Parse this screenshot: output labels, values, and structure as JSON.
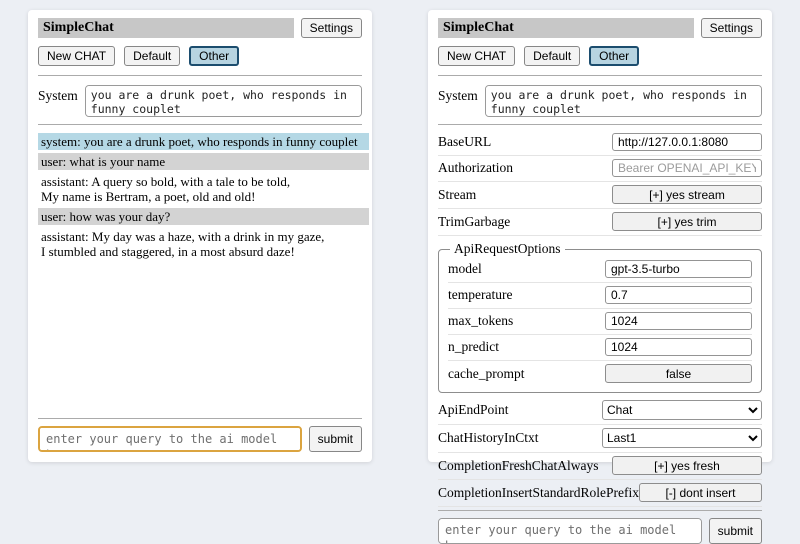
{
  "app": {
    "title": "SimpleChat",
    "settings_button": "Settings",
    "system_label": "System",
    "system_prompt": "you are a drunk poet, who responds in funny couplet",
    "query_placeholder": "enter your query to the ai model here",
    "submit_button": "submit"
  },
  "sessions": {
    "buttons": [
      "New CHAT",
      "Default",
      "Other"
    ],
    "selected": "Other"
  },
  "chat": {
    "messages": [
      {
        "role": "system",
        "text": "system: you are a drunk poet, who responds in funny couplet"
      },
      {
        "role": "user",
        "text": "user: what is your name"
      },
      {
        "role": "assistant",
        "text": "assistant: A query so bold, with a tale to be told,\nMy name is Bertram, a poet, old and old!"
      },
      {
        "role": "user",
        "text": "user: how was your day?"
      },
      {
        "role": "assistant",
        "text": "assistant: My day was a haze, with a drink in my gaze,\nI stumbled and staggered, in a most absurd daze!"
      }
    ]
  },
  "settings": {
    "fields_top": [
      {
        "label": "BaseURL",
        "type": "input",
        "value": "http://127.0.0.1:8080",
        "placeholder": ""
      },
      {
        "label": "Authorization",
        "type": "input",
        "value": "",
        "placeholder": "Bearer OPENAI_API_KEY"
      },
      {
        "label": "Stream",
        "type": "button",
        "value": "[+] yes stream"
      },
      {
        "label": "TrimGarbage",
        "type": "button",
        "value": "[+] yes trim"
      }
    ],
    "api_request_options": {
      "legend": "ApiRequestOptions",
      "fields": [
        {
          "label": "model",
          "type": "input",
          "value": "gpt-3.5-turbo",
          "placeholder": ""
        },
        {
          "label": "temperature",
          "type": "input",
          "value": "0.7",
          "placeholder": ""
        },
        {
          "label": "max_tokens",
          "type": "input",
          "value": "1024",
          "placeholder": ""
        },
        {
          "label": "n_predict",
          "type": "input",
          "value": "1024",
          "placeholder": ""
        },
        {
          "label": "cache_prompt",
          "type": "button",
          "value": "false"
        }
      ]
    },
    "fields_bottom": [
      {
        "label": "ApiEndPoint",
        "type": "select",
        "value": "Chat"
      },
      {
        "label": "ChatHistoryInCtxt",
        "type": "select",
        "value": "Last1"
      },
      {
        "label": "CompletionFreshChatAlways",
        "type": "button",
        "value": "[+] yes fresh"
      },
      {
        "label": "CompletionInsertStandardRolePrefix",
        "type": "button",
        "value": "[-] dont insert"
      }
    ]
  },
  "colors": {
    "page_bg": "#eceff4",
    "titlebar_bg": "#c7c7c7",
    "selected_session_bg": "#b7d4e1",
    "selected_session_border": "#1c4d6e",
    "msg_system_bg": "#b5d8e5",
    "msg_user_bg": "#d3d3d3",
    "query_focus_border": "#dba440"
  }
}
